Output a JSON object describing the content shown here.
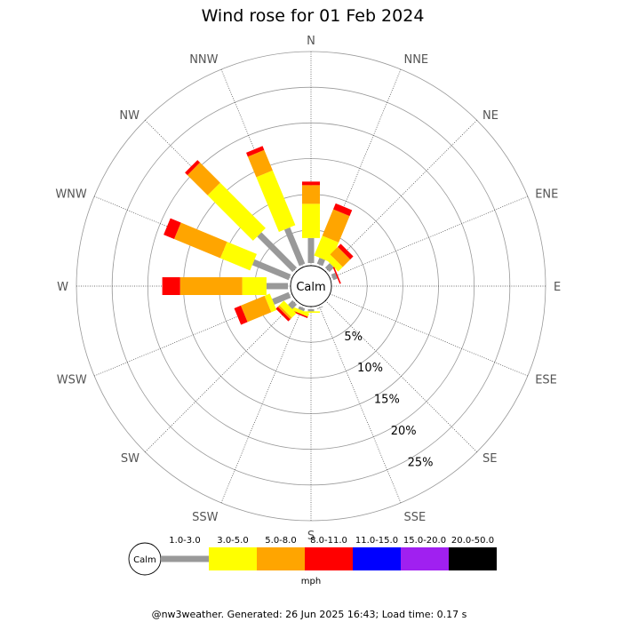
{
  "chart_data": {
    "type": "wind-rose",
    "title": "Wind rose for 01 Feb 2024",
    "directions": [
      "N",
      "NNE",
      "NE",
      "ENE",
      "E",
      "ESE",
      "SE",
      "SSE",
      "S",
      "SSW",
      "SW",
      "WSW",
      "W",
      "WNW",
      "NW",
      "NNW"
    ],
    "radial_ticks": [
      "5%",
      "10%",
      "15%",
      "20%",
      "25%"
    ],
    "radial_values": [
      5,
      10,
      15,
      20,
      25
    ],
    "rmax": 30,
    "calm_label": "Calm",
    "bins": [
      {
        "name": "1.0-3.0",
        "color": "#999999",
        "width": "thin"
      },
      {
        "name": "3.0-5.0",
        "color": "#ffff00",
        "width": "thick"
      },
      {
        "name": "5.0-8.0",
        "color": "#ffa500",
        "width": "thick"
      },
      {
        "name": "8.0-11.0",
        "color": "#ff0000",
        "width": "thick"
      },
      {
        "name": "11.0-15.0",
        "color": "#0000ff",
        "width": "thick"
      },
      {
        "name": "15.0-20.0",
        "color": "#a020f0",
        "width": "thick"
      },
      {
        "name": "20.0-50.0",
        "color": "#000000",
        "width": "thick"
      }
    ],
    "units": "mph",
    "series_by_direction": {
      "N": [
        3.5,
        4.8,
        2.6,
        0.5,
        0,
        0,
        0
      ],
      "NNE": [
        0.9,
        3.0,
        4.0,
        0.9,
        0,
        0,
        0
      ],
      "NE": [
        0.9,
        0.9,
        1.5,
        0.6,
        0,
        0,
        0
      ],
      "ENE": [
        0.6,
        0.0,
        0.0,
        0.2,
        0,
        0,
        0
      ],
      "E": [
        0.0,
        0.0,
        0.0,
        0.0,
        0,
        0,
        0
      ],
      "ESE": [
        0.0,
        0.0,
        0.0,
        0.0,
        0,
        0,
        0
      ],
      "SE": [
        0.0,
        0.0,
        0.0,
        0.0,
        0,
        0,
        0
      ],
      "SSE": [
        0.1,
        0.0,
        0.0,
        0.0,
        0,
        0,
        0
      ],
      "S": [
        0.3,
        0.2,
        0.0,
        0.0,
        0,
        0,
        0
      ],
      "SSW": [
        0.4,
        0.5,
        0.0,
        0.2,
        0,
        0,
        0
      ],
      "SW": [
        0.9,
        0.9,
        0.3,
        0.4,
        0,
        0,
        0
      ],
      "WSW": [
        2.5,
        0.8,
        3.6,
        1.0,
        0,
        0,
        0
      ],
      "W": [
        3.0,
        3.4,
        8.7,
        2.5,
        0,
        0,
        0
      ],
      "WNW": [
        5.5,
        4.5,
        7.0,
        1.6,
        0,
        0,
        0
      ],
      "NW": [
        7.0,
        9.0,
        4.0,
        0.5,
        0,
        0,
        0
      ],
      "NNW": [
        5.5,
        8.3,
        3.1,
        0.6,
        0,
        0,
        0
      ]
    }
  },
  "footer": "@nw3weather. Generated: 26 Jun 2025 16:43; Load time: 0.17 s"
}
